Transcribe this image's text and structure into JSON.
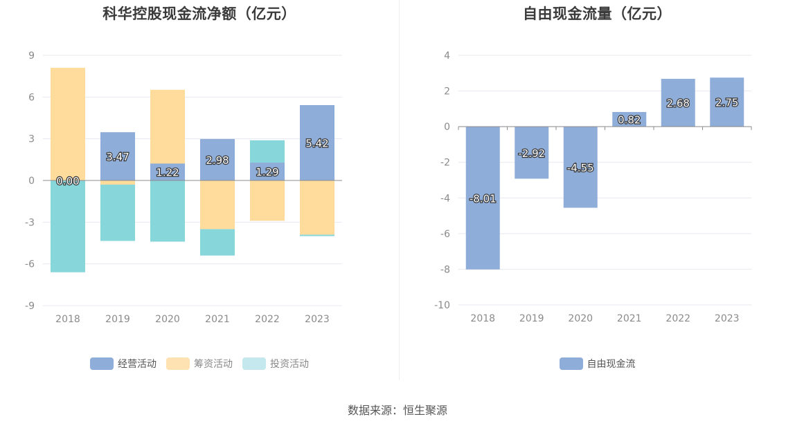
{
  "source": "数据来源：恒生聚源",
  "charts": {
    "left": {
      "title": "科华控股现金流净额（亿元）",
      "legend": [
        {
          "name": "经营活动",
          "color": "#8fadd9"
        },
        {
          "name": "筹资活动",
          "color": "#ffdb9c"
        },
        {
          "name": "投资活动",
          "color": "#c4e8ee"
        }
      ]
    },
    "right": {
      "title": "自由现金流量（亿元）",
      "legend": [
        {
          "name": "自由现金流",
          "color": "#8fadd9"
        }
      ]
    }
  },
  "chart_data": [
    {
      "type": "bar",
      "stacked": true,
      "title": "科华控股现金流净额（亿元）",
      "categories": [
        "2018",
        "2019",
        "2020",
        "2021",
        "2022",
        "2023"
      ],
      "ylim": [
        -9,
        9
      ],
      "yticks": [
        9,
        6,
        3,
        0,
        -3,
        -6,
        -9
      ],
      "grid": true,
      "legend_position": "bottom",
      "series": [
        {
          "name": "经营活动",
          "color": "#8fadd9",
          "values": [
            0.0,
            3.47,
            1.22,
            2.98,
            1.29,
            5.42
          ],
          "labels": [
            "0.00",
            "3.47",
            "1.22",
            "2.98",
            "1.29",
            "5.42"
          ]
        },
        {
          "name": "筹资活动",
          "color": "#ffdb9c",
          "values": [
            8.1,
            -0.3,
            5.3,
            -3.5,
            -2.9,
            -3.9
          ]
        },
        {
          "name": "投资活动",
          "color": "#86d6da",
          "values": [
            -6.6,
            -4.05,
            -4.4,
            -1.9,
            1.6,
            -0.1
          ]
        }
      ]
    },
    {
      "type": "bar",
      "title": "自由现金流量（亿元）",
      "categories": [
        "2018",
        "2019",
        "2020",
        "2021",
        "2022",
        "2023"
      ],
      "ylim": [
        -10,
        4
      ],
      "yticks": [
        4,
        2,
        0,
        -2,
        -4,
        -6,
        -8,
        -10
      ],
      "grid": true,
      "legend_position": "bottom",
      "series": [
        {
          "name": "自由现金流",
          "color": "#8fadd9",
          "values": [
            -8.01,
            -2.92,
            -4.55,
            0.82,
            2.68,
            2.75
          ],
          "labels": [
            "-8.01",
            "-2.92",
            "-4.55",
            "0.82",
            "2.68",
            "2.75"
          ]
        }
      ]
    }
  ]
}
